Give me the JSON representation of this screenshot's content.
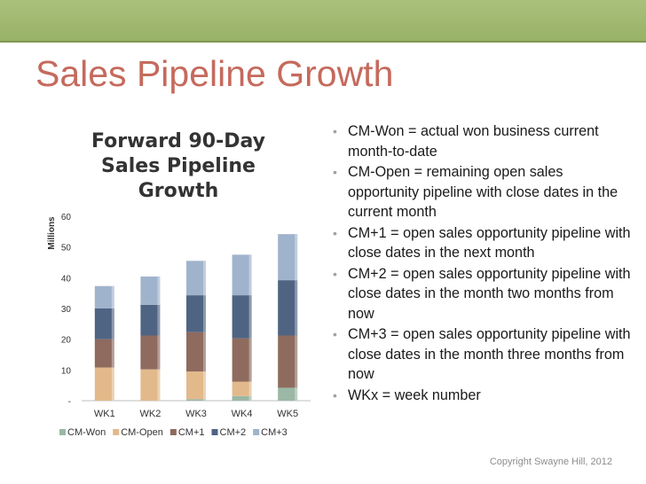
{
  "slide": {
    "title": "Sales Pipeline Growth",
    "copyright": "Copyright Swayne Hill, 2012",
    "bullets": [
      "CM-Won = actual won business current month-to-date",
      "CM-Open = remaining open sales opportunity pipeline with close dates in the current month",
      "CM+1 = open sales opportunity pipeline with close dates in the next month",
      "CM+2 = open sales opportunity pipeline with close dates in the month two months from now",
      "CM+3 = open sales opportunity pipeline with close dates in the month three months from now",
      "WKx = week number"
    ]
  },
  "chart_data": {
    "type": "bar",
    "stacked": true,
    "title": "Forward 90-Day Sales Pipeline Growth",
    "ylabel": "Millions",
    "ylim": [
      0,
      60
    ],
    "yticks": [
      "-",
      "10",
      "20",
      "30",
      "40",
      "50",
      "60"
    ],
    "categories": [
      "WK1",
      "WK2",
      "WK3",
      "WK4",
      "WK5"
    ],
    "legend_position": "bottom",
    "series": [
      {
        "name": "CM-Won",
        "color": "#9bb7a5",
        "values": [
          0,
          0,
          0.5,
          1.5,
          4.2
        ]
      },
      {
        "name": "CM-Open",
        "color": "#e2b98b",
        "values": [
          10.8,
          10.2,
          9.0,
          4.7,
          0
        ]
      },
      {
        "name": "CM+1",
        "color": "#8e6b5e",
        "values": [
          9.2,
          11.0,
          12.8,
          14.1,
          17.0
        ]
      },
      {
        "name": "CM+2",
        "color": "#4f6483",
        "values": [
          10.0,
          10.0,
          12.0,
          14.0,
          18.0
        ]
      },
      {
        "name": "CM+3",
        "color": "#a0b3cc",
        "values": [
          7.3,
          9.2,
          11.2,
          13.2,
          15.0
        ]
      }
    ]
  }
}
